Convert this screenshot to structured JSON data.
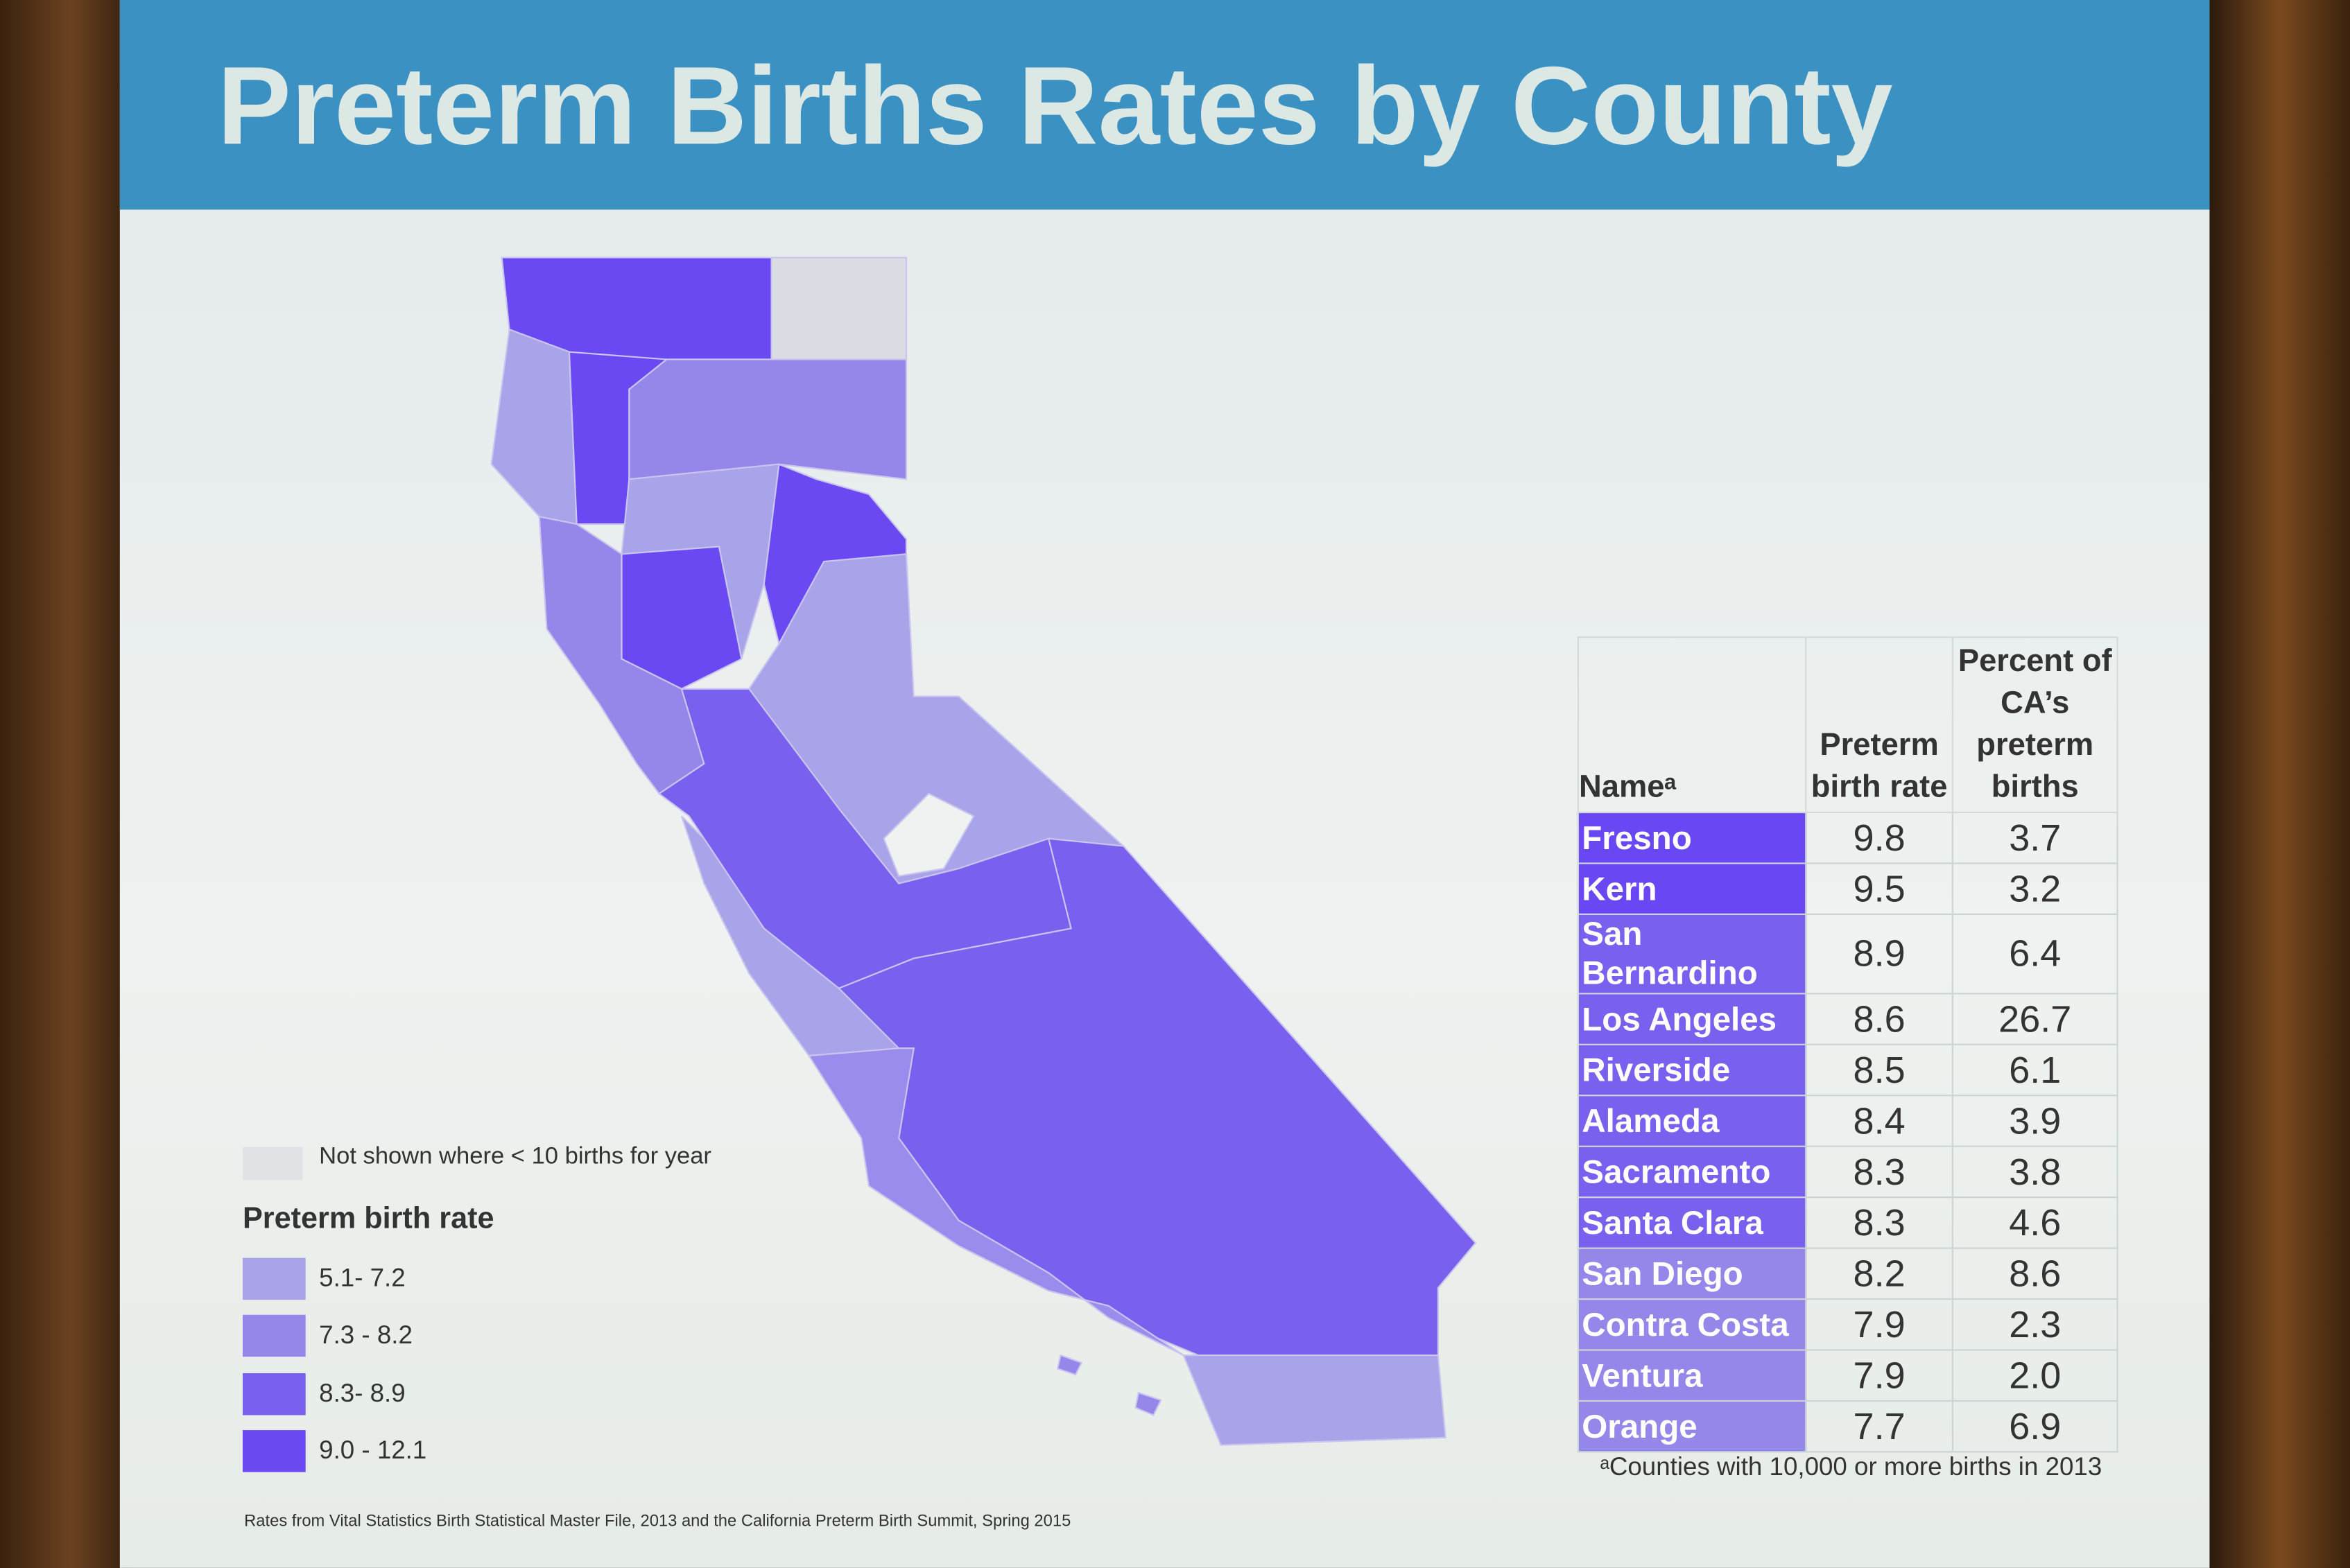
{
  "title": "Preterm Births Rates by County",
  "legend": {
    "note": "Not shown where < 10 births for year",
    "title": "Preterm birth rate",
    "items": [
      "5.1- 7.2",
      "7.3 - 8.2",
      "8.3- 8.9",
      "9.0 - 12.1"
    ]
  },
  "table": {
    "headers": [
      "Nameᵃ",
      "Preterm birth rate",
      "Percent of CA’s preterm births"
    ],
    "rows": [
      [
        "Fresno",
        "9.8",
        "3.7"
      ],
      [
        "Kern",
        "9.5",
        "3.2"
      ],
      [
        "San Bernardino",
        "8.9",
        "6.4"
      ],
      [
        "Los Angeles",
        "8.6",
        "26.7"
      ],
      [
        "Riverside",
        "8.5",
        "6.1"
      ],
      [
        "Alameda",
        "8.4",
        "3.9"
      ],
      [
        "Sacramento",
        "8.3",
        "3.8"
      ],
      [
        "Santa Clara",
        "8.3",
        "4.6"
      ],
      [
        "San Diego",
        "8.2",
        "8.6"
      ],
      [
        "Contra Costa",
        "7.9",
        "2.3"
      ],
      [
        "Ventura",
        "7.9",
        "2.0"
      ],
      [
        "Orange",
        "7.7",
        "6.9"
      ]
    ]
  },
  "footnote": "ᵃCounties with 10,000 or more births in 2013",
  "source": "Rates from Vital Statistics Birth Statistical Master File, 2013 and the California Preterm Birth Summit, Spring 2015"
}
